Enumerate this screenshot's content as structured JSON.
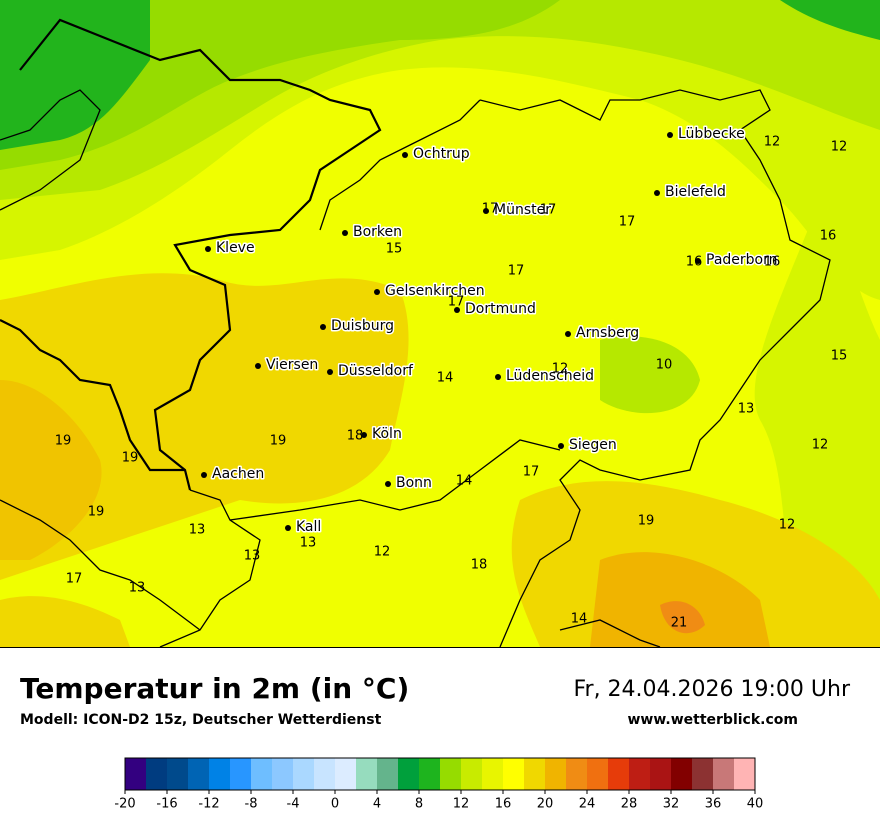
{
  "header": {
    "title": "Temperatur in 2m (in °C)",
    "model": "Modell: ICON-D2 15z, Deutscher Wetterdienst",
    "datetime": "Fr, 24.04.2026 19:00 Uhr",
    "website": "www.wetterblick.com"
  },
  "map": {
    "cities": [
      "Lübbecke",
      "Ochtrup",
      "Bielefeld",
      "Münster",
      "Borken",
      "Kleve",
      "Paderborn",
      "Gelsenkirchen",
      "Dortmund",
      "Duisburg",
      "Arnsberg",
      "Viersen",
      "Düsseldorf",
      "Lüdenscheid",
      "Köln",
      "Siegen",
      "Aachen",
      "Bonn",
      "Kall"
    ],
    "temperatures": [
      12,
      12,
      17,
      17,
      17,
      15,
      16,
      17,
      16,
      16,
      17,
      15,
      12,
      10,
      14,
      13,
      19,
      19,
      18,
      19,
      12,
      17,
      14,
      19,
      13,
      19,
      12,
      13,
      13,
      12,
      18,
      17,
      13,
      14,
      21
    ]
  },
  "colorbar": {
    "colors": [
      "#330080",
      "#003c80",
      "#004a8c",
      "#0064b4",
      "#0082e6",
      "#2896ff",
      "#6ebeff",
      "#8cc8ff",
      "#aad8ff",
      "#c8e4ff",
      "#dcecff",
      "#96dcbe",
      "#64b48c",
      "#00a03c",
      "#1eb41e",
      "#96dc00",
      "#c8eb00",
      "#e8f500",
      "#ffff00",
      "#f0d800",
      "#f0b400",
      "#f08c14",
      "#f07010",
      "#e63c0a",
      "#be1e14",
      "#aa1414",
      "#820000",
      "#8c3232",
      "#c87878",
      "#ffb4b4"
    ],
    "ticks": [
      -20,
      -16,
      -12,
      -8,
      -4,
      0,
      4,
      8,
      12,
      16,
      20,
      24,
      28,
      32,
      36,
      40
    ]
  }
}
